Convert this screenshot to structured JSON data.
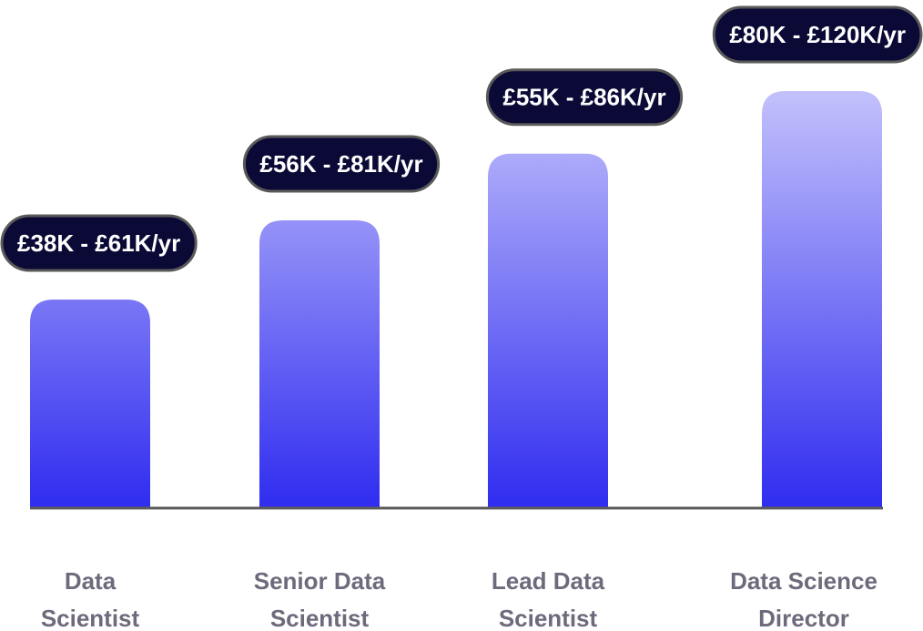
{
  "chart_data": {
    "type": "bar",
    "title": "",
    "xlabel": "",
    "ylabel": "",
    "categories": [
      [
        "Data",
        "Scientist"
      ],
      [
        "Senior Data",
        "Scientist"
      ],
      [
        "Lead Data",
        "Scientist"
      ],
      [
        "Data Science",
        "Director"
      ]
    ],
    "ranges_gbp_k": [
      [
        38,
        61
      ],
      [
        56,
        81
      ],
      [
        55,
        86
      ],
      [
        80,
        120
      ]
    ],
    "range_labels": [
      "£38K - £61K/yr",
      "£56K - £81K/yr",
      "£55K - £86K/yr",
      "£80K - £120K/yr"
    ],
    "relative_bar_heights": [
      0.5,
      0.69,
      0.85,
      1.0
    ],
    "colors": {
      "bar_light": "#c3c1fb",
      "bar_dark": "#2f2cf0",
      "label_bg": "#0b0a36",
      "label_border": "#5a5a5a",
      "label_text": "#ffffff",
      "category_text": "#6e6a7c",
      "axis": "#5c5c5c"
    }
  }
}
